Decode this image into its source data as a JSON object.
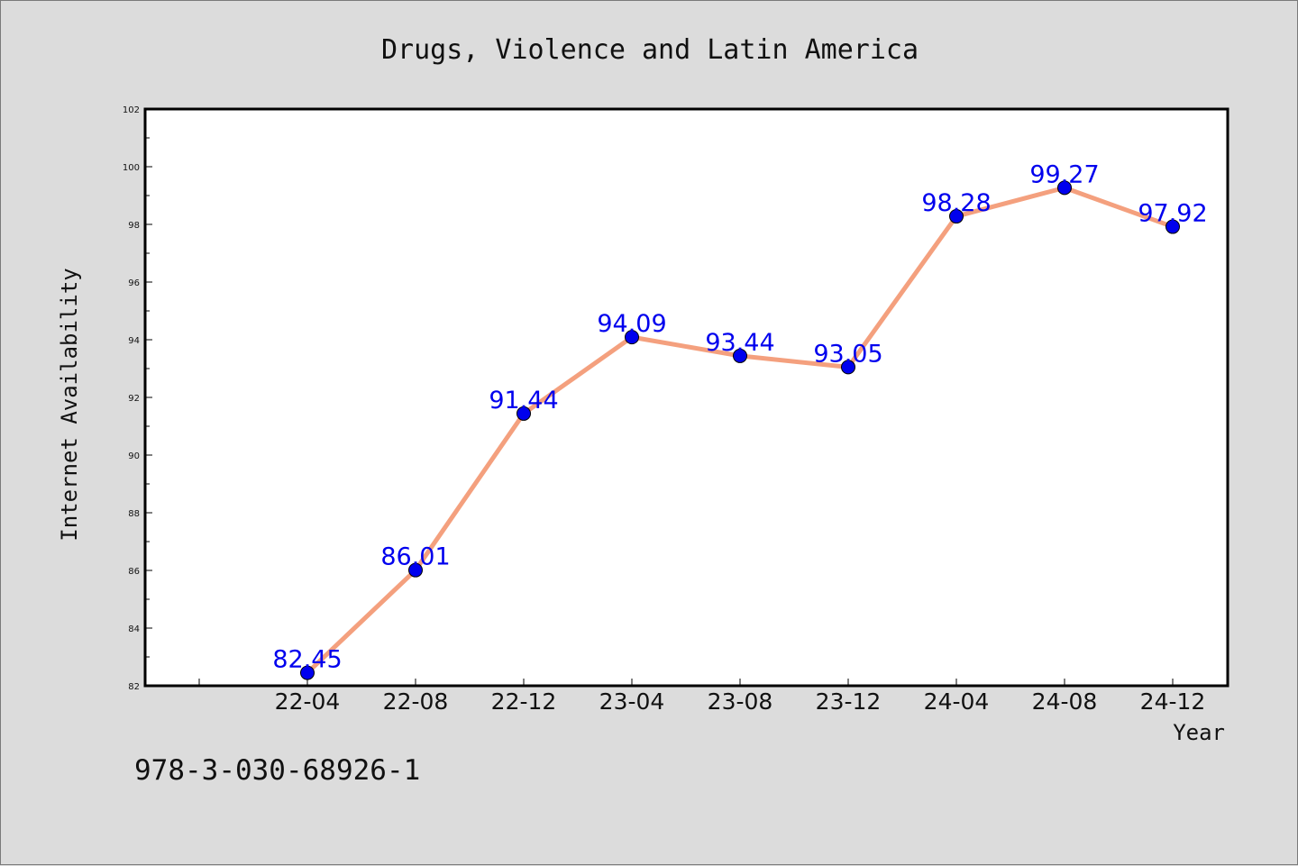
{
  "chart_data": {
    "type": "line",
    "title": "Drugs, Violence and Latin America",
    "xlabel": "Year",
    "ylabel": "Internet Availability",
    "categories": [
      "22-04",
      "22-08",
      "22-12",
      "23-04",
      "23-08",
      "23-12",
      "24-04",
      "24-08",
      "24-12"
    ],
    "series": [
      {
        "values": [
          82.45,
          86.01,
          91.44,
          94.09,
          93.44,
          93.05,
          98.28,
          99.27,
          97.92
        ],
        "labels": [
          "82.45",
          "86.01",
          "91.44",
          "94.09",
          "93.44",
          "93.05",
          "98.28",
          "99.27",
          "97.92"
        ]
      }
    ],
    "ylim": [
      82,
      102
    ],
    "yticks": [
      82,
      84,
      86,
      88,
      90,
      92,
      94,
      96,
      98,
      100,
      102
    ],
    "grid": false,
    "line_color": "#f4a07e",
    "marker_color": "#0000ee",
    "label_color": "#0000ee"
  },
  "footnote": "978-3-030-68926-1"
}
